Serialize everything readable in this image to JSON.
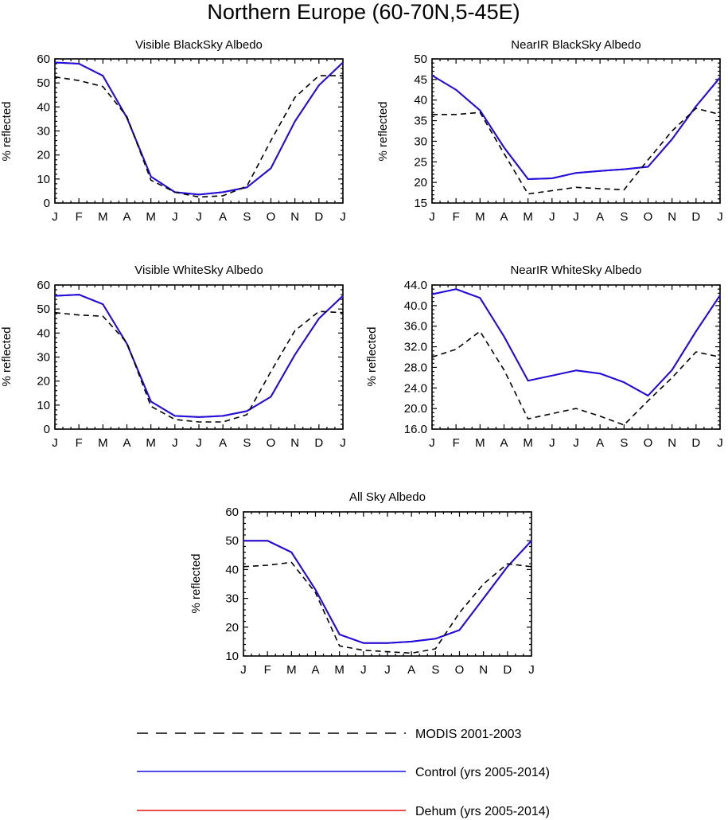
{
  "figure": {
    "title": "Northern Europe (60-70N,5-45E)"
  },
  "colors": {
    "modis": "#000000",
    "control": "#1a10e6",
    "dehum": "#e61010"
  },
  "legend": [
    {
      "key": "modis",
      "label": "MODIS 2001-2003",
      "style": "dashed"
    },
    {
      "key": "control",
      "label": "Control (yrs 2005-2014)",
      "style": "solid"
    },
    {
      "key": "dehum",
      "label": "Dehum (yrs 2005-2014)",
      "style": "solid"
    }
  ],
  "chart_data": [
    {
      "type": "line",
      "title": "Visible BlackSky Albedo",
      "ylabel": "% reflected",
      "categories": [
        "J",
        "F",
        "M",
        "A",
        "M",
        "J",
        "J",
        "A",
        "S",
        "O",
        "N",
        "D",
        "J"
      ],
      "ylim": [
        0,
        60
      ],
      "yticks": [
        "0",
        "10",
        "20",
        "30",
        "40",
        "50",
        "60"
      ],
      "series": [
        {
          "key": "modis",
          "name": "MODIS 2001-2003",
          "values": [
            52.5,
            51,
            48.5,
            36,
            9.5,
            4.5,
            2.5,
            3,
            7,
            26,
            44,
            53,
            53
          ]
        },
        {
          "key": "control",
          "name": "Control (yrs 2005-2014)",
          "values": [
            58.5,
            58,
            53,
            35.5,
            11,
            4.5,
            3.5,
            4.5,
            6.5,
            14.5,
            34,
            49,
            58.5
          ]
        },
        {
          "key": "dehum",
          "name": "Dehum (yrs 2005-2014)",
          "values": [
            58.5,
            58,
            53,
            35.5,
            11,
            4.5,
            3.5,
            4.5,
            6.5,
            14.5,
            34,
            49,
            58.5
          ]
        }
      ]
    },
    {
      "type": "line",
      "title": "NearIR BlackSky Albedo",
      "ylabel": "% reflected",
      "categories": [
        "J",
        "F",
        "M",
        "A",
        "M",
        "J",
        "J",
        "A",
        "S",
        "O",
        "N",
        "D",
        "J"
      ],
      "ylim": [
        15,
        50
      ],
      "yticks": [
        "15",
        "20",
        "25",
        "30",
        "35",
        "40",
        "45",
        "50"
      ],
      "series": [
        {
          "key": "modis",
          "name": "MODIS 2001-2003",
          "values": [
            36.5,
            36.5,
            37,
            27,
            17.2,
            18,
            18.8,
            18.5,
            18.2,
            25.5,
            32.5,
            38,
            36.5
          ]
        },
        {
          "key": "control",
          "name": "Control (yrs 2005-2014)",
          "values": [
            46,
            42.5,
            37.5,
            28.5,
            20.8,
            21,
            22.3,
            22.8,
            23.2,
            23.8,
            30.5,
            38.5,
            45.5
          ]
        },
        {
          "key": "dehum",
          "name": "Dehum (yrs 2005-2014)",
          "values": [
            46,
            42.5,
            37.5,
            28.5,
            20.8,
            21,
            22.3,
            22.8,
            23.2,
            23.8,
            30.5,
            38.5,
            45.5
          ]
        }
      ]
    },
    {
      "type": "line",
      "title": "Visible WhiteSky Albedo",
      "ylabel": "% reflected",
      "categories": [
        "J",
        "F",
        "M",
        "A",
        "M",
        "J",
        "J",
        "A",
        "S",
        "O",
        "N",
        "D",
        "J"
      ],
      "ylim": [
        0,
        60
      ],
      "yticks": [
        "0",
        "10",
        "20",
        "30",
        "40",
        "50",
        "60"
      ],
      "series": [
        {
          "key": "modis",
          "name": "MODIS 2001-2003",
          "values": [
            48.5,
            47.5,
            47,
            36,
            9.5,
            4,
            3,
            3,
            6,
            24,
            41,
            49,
            48.5
          ]
        },
        {
          "key": "control",
          "name": "Control (yrs 2005-2014)",
          "values": [
            55.5,
            56,
            52,
            35.5,
            11.5,
            5.5,
            5,
            5.5,
            7.5,
            13.5,
            31,
            46,
            55.5
          ]
        },
        {
          "key": "dehum",
          "name": "Dehum (yrs 2005-2014)",
          "values": [
            55.5,
            56,
            52,
            35.5,
            11.5,
            5.5,
            5,
            5.5,
            7.5,
            13.5,
            31,
            46,
            55.5
          ]
        }
      ]
    },
    {
      "type": "line",
      "title": "NearIR WhiteSky Albedo",
      "ylabel": "% reflected",
      "categories": [
        "J",
        "F",
        "M",
        "A",
        "M",
        "J",
        "J",
        "A",
        "S",
        "O",
        "N",
        "D",
        "J"
      ],
      "ylim": [
        16,
        44
      ],
      "yticks": [
        "16.0",
        "20.0",
        "24.0",
        "28.0",
        "32.0",
        "36.0",
        "40.0",
        "44.0"
      ],
      "series": [
        {
          "key": "modis",
          "name": "MODIS 2001-2003",
          "values": [
            30,
            31.5,
            35,
            27.5,
            18,
            19,
            20,
            18.5,
            16.8,
            21.5,
            26,
            31,
            30
          ]
        },
        {
          "key": "control",
          "name": "Control (yrs 2005-2014)",
          "values": [
            42.2,
            43.2,
            41.5,
            34,
            25.4,
            26.4,
            27.4,
            26.8,
            25.1,
            22.5,
            27.5,
            35,
            42
          ]
        },
        {
          "key": "dehum",
          "name": "Dehum (yrs 2005-2014)",
          "values": [
            42.2,
            43.2,
            41.5,
            34,
            25.4,
            26.4,
            27.4,
            26.8,
            25.1,
            22.5,
            27.5,
            35,
            42
          ]
        }
      ]
    },
    {
      "type": "line",
      "title": "All Sky Albedo",
      "ylabel": "% reflected",
      "categories": [
        "J",
        "F",
        "M",
        "A",
        "M",
        "J",
        "J",
        "A",
        "S",
        "O",
        "N",
        "D",
        "J"
      ],
      "ylim": [
        10,
        60
      ],
      "yticks": [
        "10",
        "20",
        "30",
        "40",
        "50",
        "60"
      ],
      "series": [
        {
          "key": "modis",
          "name": "MODIS 2001-2003",
          "values": [
            41,
            41.5,
            42.5,
            32,
            13.5,
            12,
            11.5,
            11,
            12.5,
            25,
            35,
            42,
            41
          ]
        },
        {
          "key": "control",
          "name": "Control (yrs 2005-2014)",
          "values": [
            50,
            50,
            46,
            33,
            17.5,
            14.5,
            14.5,
            15,
            16,
            19,
            30,
            41,
            50
          ]
        },
        {
          "key": "dehum",
          "name": "Dehum (yrs 2005-2014)",
          "values": [
            50,
            50,
            46,
            33,
            17.5,
            14.5,
            14.5,
            15,
            16,
            19,
            30,
            41,
            50
          ]
        }
      ]
    }
  ]
}
